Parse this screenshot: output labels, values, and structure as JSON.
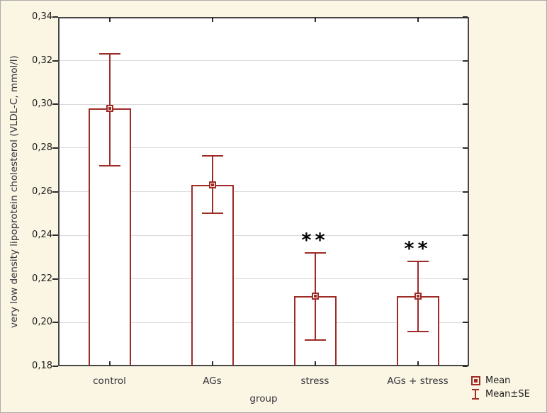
{
  "colors": {
    "background": "#FBF5E3",
    "plot_background": "#FFFFFF",
    "series": "#9E2B26",
    "grid": "#DADADA",
    "frame": "#474747",
    "text": "#35353B",
    "tick_text": "#1E1E1E",
    "annotation": "#000000",
    "outer_border": "#ACACAC"
  },
  "y_axis": {
    "title": "very low density lipoprotein cholesterol (VLDL-C, mmol/l)",
    "tick_labels": [
      "0,18",
      "0,20",
      "0,22",
      "0,24",
      "0,26",
      "0,28",
      "0,30",
      "0,32",
      "0,34"
    ],
    "tick_values": [
      0.18,
      0.2,
      0.22,
      0.24,
      0.26,
      0.28,
      0.3,
      0.32,
      0.34
    ]
  },
  "x_axis": {
    "title": "group",
    "categories": [
      "control",
      "AGs",
      "stress",
      "AGs + stress"
    ]
  },
  "legend": {
    "items": [
      {
        "icon": "mean-square-icon",
        "label": "Mean"
      },
      {
        "icon": "error-bar-icon",
        "label": "Mean±SE"
      }
    ]
  },
  "chart_data": {
    "type": "bar",
    "title": "",
    "categories": [
      "control",
      "AGs",
      "stress",
      "AGs + stress"
    ],
    "series": [
      {
        "name": "Mean",
        "values": [
          0.298,
          0.263,
          0.212,
          0.212
        ]
      }
    ],
    "error_bars": {
      "type": "SE",
      "upper": [
        0.323,
        0.2765,
        0.232,
        0.228
      ],
      "lower": [
        0.272,
        0.25,
        0.192,
        0.196
      ]
    },
    "annotations": [
      {
        "category": "stress",
        "text": "**"
      },
      {
        "category": "AGs + stress",
        "text": "**"
      }
    ],
    "xlabel": "group",
    "ylabel": "very low density lipoprotein cholesterol (VLDL-C, mmol/l)",
    "ylim": [
      0.18,
      0.34
    ],
    "ytick_step": 0.02,
    "grid": true,
    "bar_fill": "#FFFFFF",
    "legend_position": "bottom-right"
  }
}
